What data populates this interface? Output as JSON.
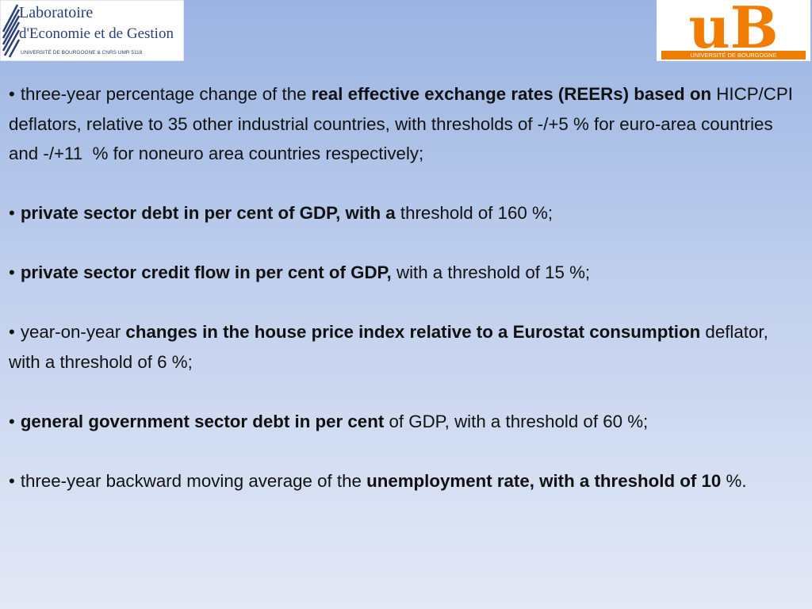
{
  "logos": {
    "left": {
      "line1": "Laboratoire",
      "line2": "d'Economie et de Gestion",
      "sub": "UNIVERSITÉ DE BOURGOGNE & CNRS UMR 5118"
    },
    "right": {
      "letters": "uB",
      "sub": "UNIVERSITÉ DE BOURGOGNE"
    }
  },
  "bullet_symbol": "•",
  "bullets": [
    {
      "runs": [
        {
          "text": "three-year percentage change of the ",
          "bold": false
        },
        {
          "text": "real effective exchange rates (REERs) based on",
          "bold": true
        },
        {
          "text": " HICP/CPI deflators, relative to 35 other industrial countries, with thresholds of -/+5 % for euro-area countries and -/+11  % for noneuro area countries respectively;",
          "bold": false
        }
      ]
    },
    {
      "runs": [
        {
          "text": "private sector debt in per cent of GDP, with a",
          "bold": true
        },
        {
          "text": " threshold of 160 %;",
          "bold": false
        }
      ]
    },
    {
      "runs": [
        {
          "text": "private sector credit flow in per cent of GDP,",
          "bold": true
        },
        {
          "text": " with a threshold of 15 %;",
          "bold": false
        }
      ]
    },
    {
      "runs": [
        {
          "text": "year-on-year ",
          "bold": false
        },
        {
          "text": "changes in the house price index relative to a Eurostat consumption",
          "bold": true
        },
        {
          "text": " deflator, with a threshold of 6 %;",
          "bold": false
        }
      ]
    },
    {
      "runs": [
        {
          "text": "general government sector debt in per cent",
          "bold": true
        },
        {
          "text": " of GDP, with a threshold of 60 %;",
          "bold": false
        }
      ]
    },
    {
      "runs": [
        {
          "text": "three-year backward moving average of the ",
          "bold": false
        },
        {
          "text": "unemployment rate, with a threshold of 10",
          "bold": true
        },
        {
          "text": " %.",
          "bold": false
        }
      ]
    }
  ]
}
